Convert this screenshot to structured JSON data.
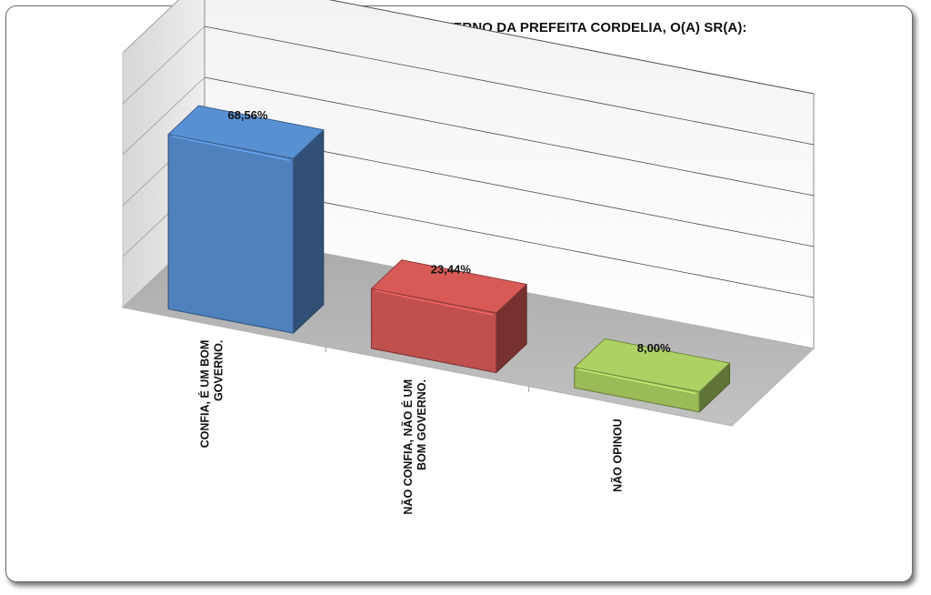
{
  "chart_data": {
    "type": "bar",
    "title": "EM RELAÇÃO A CREDIBILIDADE NO GOVERNO DA PREFEITA CORDELIA, O(A) SR(A):",
    "categories": [
      [
        "CONFIA, É UM BOM",
        "GOVERNO."
      ],
      [
        "NÃO CONFIA, NÃO É UM",
        "BOM GOVERNO."
      ],
      [
        "NÃO OPINOU"
      ]
    ],
    "values": [
      68.56,
      23.44,
      8.0
    ],
    "data_labels": [
      "68,56%",
      "23,44%",
      "8,00%"
    ],
    "colors": [
      "#4F81BD",
      "#C0504D",
      "#9BBB59"
    ],
    "ylim": [
      0,
      100
    ],
    "grid": true,
    "style": "3d-column"
  }
}
